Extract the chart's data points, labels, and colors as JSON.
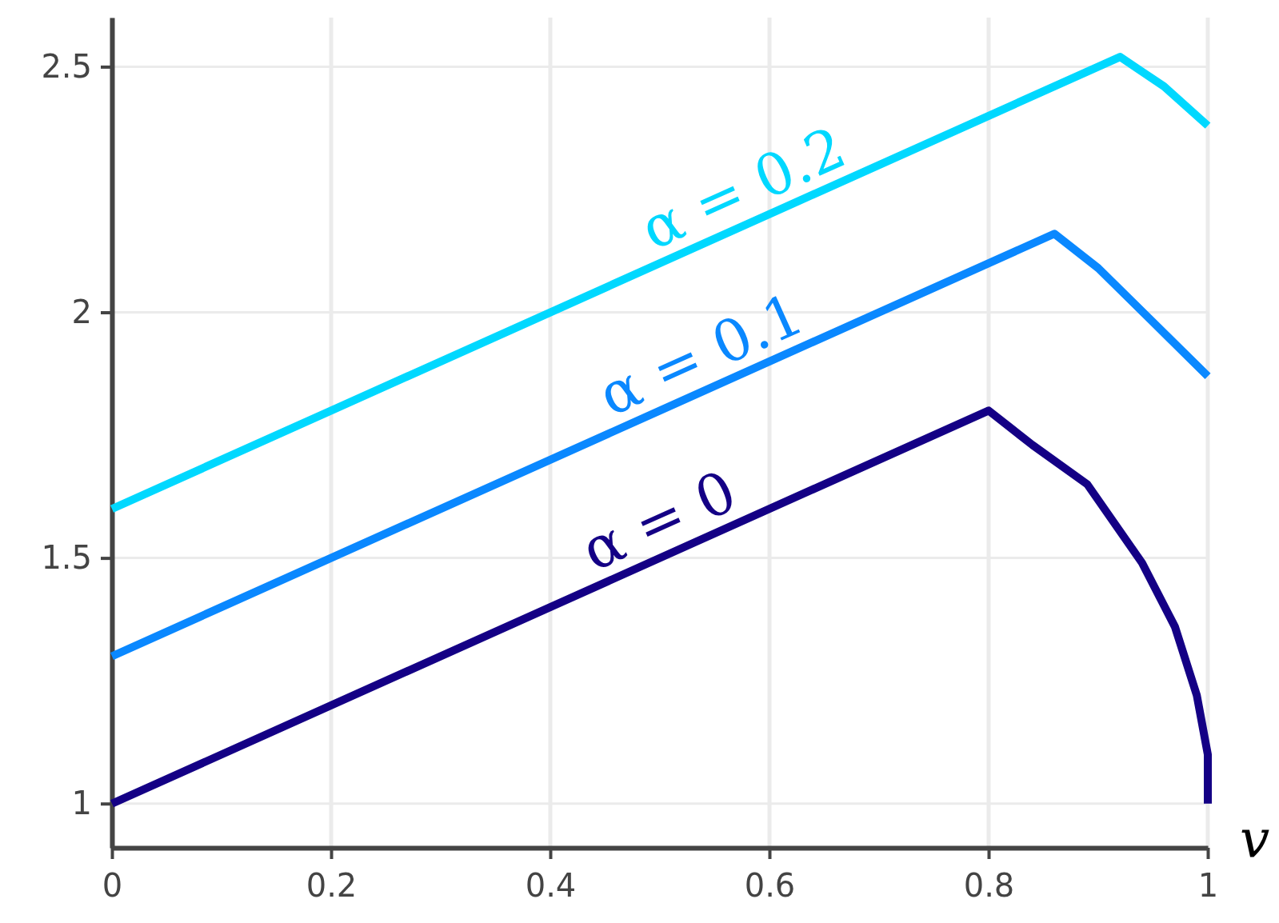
{
  "chart_data": {
    "type": "line",
    "xlabel": "v",
    "xlim": [
      0,
      1
    ],
    "ylim": [
      0.91,
      2.6
    ],
    "xticks": [
      0,
      0.2,
      0.4,
      0.6,
      0.8,
      1
    ],
    "yticks": [
      1,
      1.5,
      2,
      2.5
    ],
    "grid": true,
    "marker": "none",
    "line_style": "solid",
    "series": [
      {
        "name": "α = 0",
        "color": "#140085",
        "x": [
          0,
          0.8,
          0.84,
          0.89,
          0.94,
          0.97,
          0.99,
          1,
          1
        ],
        "values": [
          1,
          1.8,
          1.73,
          1.65,
          1.49,
          1.36,
          1.22,
          1.1,
          1
        ]
      },
      {
        "name": "α = 0.1",
        "color": "#0a88ff",
        "x": [
          0,
          0.86,
          0.9,
          0.95,
          1
        ],
        "values": [
          1.3,
          2.16,
          2.09,
          1.98,
          1.87
        ]
      },
      {
        "name": "α = 0.2",
        "color": "#00d8ff",
        "x": [
          0,
          0.92,
          0.94,
          0.96,
          1
        ],
        "values": [
          1.6,
          2.52,
          2.49,
          2.46,
          2.38
        ]
      }
    ]
  }
}
